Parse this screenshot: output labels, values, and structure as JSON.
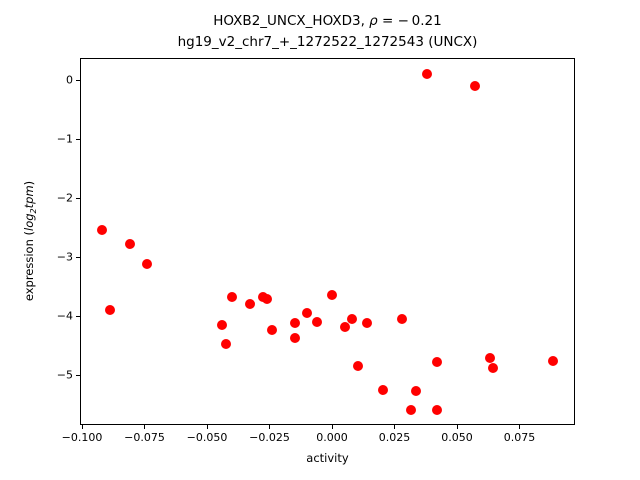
{
  "chart_data": {
    "type": "scatter",
    "title": {
      "part1": "HOXB2_UNCX_HOXD3, ",
      "rho": "ρ",
      "part2": " = − 0.21",
      "line2": "hg19_v2_chr7_+_1272522_1272543 (UNCX)"
    },
    "xlabel": "activity",
    "ylabel": {
      "pre": "expression (",
      "log": "log",
      "sub": "2",
      "var": "tpm",
      "post": ")"
    },
    "marker_color": "#ff0000",
    "axes_color": "#000000",
    "background_color": "#ffffff",
    "grid": false,
    "legend": null,
    "xlim": [
      -0.1008,
      0.0972
    ],
    "ylim": [
      -5.84,
      0.373
    ],
    "x_ticks": {
      "values": [
        -0.1,
        -0.075,
        -0.05,
        -0.025,
        0.0,
        0.025,
        0.05,
        0.075
      ],
      "labels": [
        "−0.100",
        "−0.075",
        "−0.050",
        "−0.025",
        "0.000",
        "0.025",
        "0.050",
        "0.075"
      ]
    },
    "y_ticks": {
      "values": [
        0,
        -1,
        -2,
        -3,
        -4,
        -5
      ],
      "labels": [
        "0",
        "−1",
        "−2",
        "−3",
        "−4",
        "−5"
      ]
    },
    "points": [
      [
        -0.092,
        -2.54
      ],
      [
        -0.081,
        -2.78
      ],
      [
        -0.089,
        -3.9
      ],
      [
        -0.074,
        -3.11
      ],
      [
        0.038,
        0.1
      ],
      [
        0.057,
        -0.1
      ],
      [
        -0.044,
        -4.15
      ],
      [
        -0.0425,
        -4.47
      ],
      [
        -0.04,
        -3.68
      ],
      [
        -0.033,
        -3.8
      ],
      [
        -0.0275,
        -3.67
      ],
      [
        -0.0262,
        -3.7
      ],
      [
        -0.024,
        -4.23
      ],
      [
        -0.015,
        -4.12
      ],
      [
        -0.015,
        -4.37
      ],
      [
        -0.01,
        -3.95
      ],
      [
        -0.006,
        -4.1
      ],
      [
        0.0,
        -3.64
      ],
      [
        0.005,
        -4.18
      ],
      [
        0.008,
        -4.04
      ],
      [
        0.0105,
        -4.84
      ],
      [
        0.014,
        -4.11
      ],
      [
        0.0205,
        -5.25
      ],
      [
        0.028,
        -4.04
      ],
      [
        0.0315,
        -5.59
      ],
      [
        0.0335,
        -5.27
      ],
      [
        0.042,
        -4.78
      ],
      [
        0.042,
        -5.58
      ],
      [
        0.063,
        -4.71
      ],
      [
        0.0645,
        -4.88
      ],
      [
        0.0885,
        -4.76
      ]
    ]
  }
}
